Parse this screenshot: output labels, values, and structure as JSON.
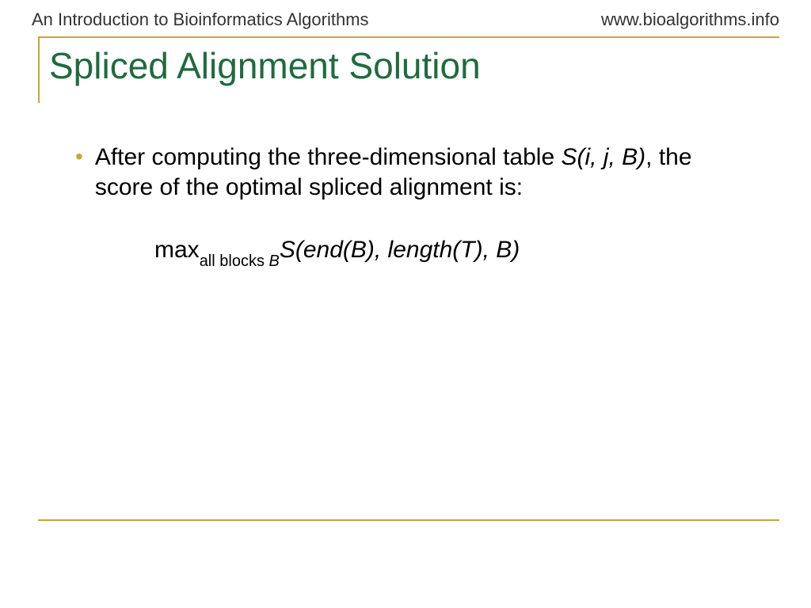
{
  "header": {
    "left": "An Introduction to Bioinformatics Algorithms",
    "right": "www.bioalgorithms.info"
  },
  "title": "Spliced Alignment Solution",
  "bullet": {
    "marker": "•",
    "text_part1": "After computing the three-dimensional table ",
    "text_italic": "S(i, j, B)",
    "text_part2": ", the score of the optimal spliced alignment is:"
  },
  "formula": {
    "max": "max",
    "sub1": "all blocks ",
    "sub2": "B",
    "expr": "S(end(B), length(T), B)"
  },
  "colors": {
    "accent_line": "#c5a933",
    "title_color": "#1f6b3e",
    "text_color": "#000000",
    "header_color": "#333333",
    "background": "#ffffff"
  },
  "fonts": {
    "header_family": "Comic Sans MS",
    "body_family": "Arial",
    "title_size": 46,
    "body_size": 30,
    "header_size": 22,
    "sub_size": 20
  }
}
